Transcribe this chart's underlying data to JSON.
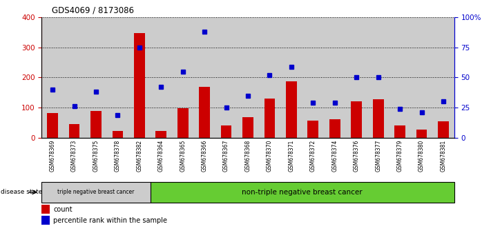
{
  "title": "GDS4069 / 8173086",
  "samples": [
    "GSM678369",
    "GSM678373",
    "GSM678375",
    "GSM678378",
    "GSM678382",
    "GSM678364",
    "GSM678365",
    "GSM678366",
    "GSM678367",
    "GSM678368",
    "GSM678370",
    "GSM678371",
    "GSM678372",
    "GSM678374",
    "GSM678376",
    "GSM678377",
    "GSM678379",
    "GSM678380",
    "GSM678381"
  ],
  "counts": [
    82,
    45,
    90,
    22,
    348,
    22,
    98,
    168,
    40,
    68,
    130,
    188,
    57,
    62,
    120,
    128,
    40,
    27,
    55
  ],
  "percentiles": [
    40,
    26,
    38,
    19,
    75,
    42,
    55,
    88,
    25,
    35,
    52,
    59,
    29,
    29,
    50,
    50,
    24,
    21,
    30
  ],
  "group1_count": 5,
  "group1_label": "triple negative breast cancer",
  "group2_label": "non-triple negative breast cancer",
  "disease_state_label": "disease state",
  "bar_color": "#cc0000",
  "dot_color": "#0000cc",
  "left_axis_color": "#cc0000",
  "right_axis_color": "#0000cc",
  "ylim_left": [
    0,
    400
  ],
  "ylim_right": [
    0,
    100
  ],
  "left_ticks": [
    0,
    100,
    200,
    300,
    400
  ],
  "right_ticks": [
    0,
    25,
    50,
    75,
    100
  ],
  "right_tick_labels": [
    "0",
    "25",
    "50",
    "75",
    "100%"
  ],
  "grid_color": "#000000",
  "bg_color": "#ffffff",
  "plot_bg": "#ffffff",
  "group1_bg": "#cccccc",
  "group2_bg": "#66cc33",
  "col_bg": "#cccccc",
  "legend_count_label": "count",
  "legend_pct_label": "percentile rank within the sample"
}
